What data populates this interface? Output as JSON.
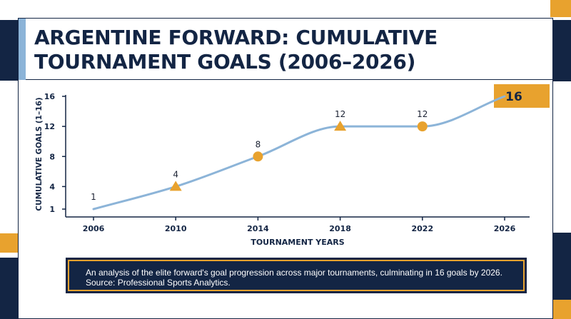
{
  "chart_data": {
    "type": "line",
    "title": "ARGENTINE FORWARD: CUMULATIVE TOURNAMENT GOALS (2006–2026)",
    "xlabel": "TOURNAMENT YEARS",
    "ylabel": "CUMULATIVE GOALS (1–16)",
    "x": [
      2006,
      2010,
      2014,
      2018,
      2022,
      2026
    ],
    "x_ticks": [
      "2006",
      "2010",
      "2014",
      "2018",
      "2022",
      "2026"
    ],
    "y_ticks": [
      "1",
      "4",
      "8",
      "12",
      "16"
    ],
    "y_tick_values": [
      1,
      4,
      8,
      12,
      16
    ],
    "ylim": [
      1,
      16
    ],
    "xlim": [
      2006,
      2026
    ],
    "grid": false,
    "series": [
      {
        "values": [
          1,
          4,
          8,
          12,
          12,
          16
        ],
        "data_labels": [
          "1",
          "4",
          "8",
          "12",
          "12",
          "16"
        ],
        "markers": [
          "none",
          "triangle",
          "circle",
          "triangle",
          "circle",
          "none"
        ],
        "color": "#8cb4d8"
      }
    ],
    "highlight": {
      "label": "16",
      "color": "#e8a22e"
    },
    "marker_color": "#e8a22e",
    "axis_color": "#132544"
  },
  "caption": {
    "line1": "An analysis of the elite forward's goal progression across major tournaments, culminating in 16 goals by 2026.",
    "line2": "Source: Professional Sports Analytics."
  },
  "colors": {
    "navy": "#132544",
    "gold": "#e8a22e",
    "light_blue": "#8cb4d8"
  }
}
